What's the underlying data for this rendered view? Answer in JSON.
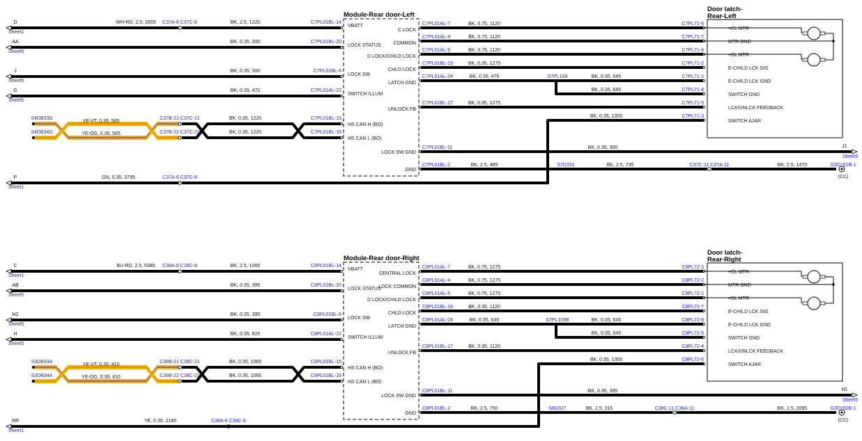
{
  "sections": [
    {
      "module_title": "Module-Rear door-Left",
      "latch_title_1": "Door latch-",
      "latch_title_2": "Rear-Left",
      "left_wires": [
        {
          "letter": "D",
          "sheet": "Sheet1",
          "spec": "WH-RD, 2.5, 2655",
          "conn": "C37A-8 C37C-8",
          "spec2": "BK, 2.5, 1220",
          "pin": "C7PL01BL-14",
          "func": "VBATT",
          "color": "#b33"
        },
        {
          "letter": "AA",
          "sheet": "Sheet5",
          "spec": "",
          "conn": "",
          "spec2": "BK, 0.35, 300",
          "pin": "C7PL01BL-20",
          "func": "LOCK STATUS",
          "color": "#000"
        },
        {
          "letter": "J",
          "sheet": "Sheet5",
          "spec": "",
          "conn": "",
          "spec2": "BK, 0.35, 300",
          "pin": "C7PL01BL-6",
          "func": "LOCK SW",
          "color": "#000"
        },
        {
          "letter": "G",
          "sheet": "Sheet5",
          "spec": "",
          "conn": "",
          "spec2": "BK, 0.35, 470",
          "pin": "C7PL01AL-22",
          "func": "SWITCH ILLUM",
          "color": "#000"
        }
      ],
      "can": [
        {
          "splice": "S4DB33G",
          "spec": "YE-VT, 0.35, 565",
          "conn": "C37B-21 C37C-21",
          "spec2": "BK, 0.35, 1220",
          "pin": "C7PL01BL-15",
          "func": "HS CAN H (BO)"
        },
        {
          "splice": "S4DB34G",
          "spec": "YE-OG, 0.35, 565",
          "conn": "C37B-22 C37C-22",
          "spec2": "BK, 0.35, 1220",
          "pin": "C7PL01BL-16",
          "func": "HS CAN L (BO)"
        }
      ],
      "bottom_wire": {
        "letter": "P",
        "sheet": "Sheet1",
        "spec": "GN, 0.35, 3735",
        "conn": "C37A-6 C37C-8",
        "color": "#2a2"
      },
      "right_wires": [
        {
          "func": "C LOCK",
          "pin": "C7PL01AL-7",
          "spec": "BK, 0.75, 1120",
          "latch_pin": "C7PL71-6",
          "latch_func": "+CL MTR"
        },
        {
          "func": "COMMON",
          "pin": "C7PL01AL-4",
          "spec": "BK, 0.75, 1120",
          "latch_pin": "C7PL71-7",
          "latch_func": "MTR GND"
        },
        {
          "func": "D LOCK/CHILD LOCK",
          "pin": "C7PL01AL-5",
          "spec": "BK, 0.75, 1120",
          "latch_pin": "C7PL71-8",
          "latch_func": "+DL MTR"
        },
        {
          "func": "CHLD LOCK",
          "pin": "C7PL01BL-19",
          "spec": "BK, 0.35, 1275",
          "latch_pin": "C7PL71-2",
          "latch_func": "E-CHILD LCK SIG"
        },
        {
          "func": "LATCH GND",
          "pin": "C7PL01AL-24",
          "spec": "BK, 0.35, 475",
          "latch_pin": "C7PL71-1",
          "latch_func": "E-CHILD LCK GND",
          "splice": "S7PL109",
          "spec_b": "BK, 0.35, 645"
        },
        {
          "func": "",
          "pin": "",
          "spec": "BK, 0.35, 645",
          "latch_pin": "C7PL71-4",
          "latch_func": "SWITCH GND"
        },
        {
          "func": "UNLOCK FB",
          "pin": "C7PL01BL-17",
          "spec": "BK, 0.35, 1275",
          "latch_pin": "C7PL71-5",
          "latch_func": "LCK/UNLCK FEEDBACK"
        },
        {
          "func": "",
          "pin": "",
          "spec": "BK, 0.35, 1355",
          "latch_pin": "C7PL71-3",
          "latch_func": "SWITCH AJAR"
        }
      ],
      "lock_sw_gnd": {
        "func": "LOCK SW GND",
        "pin": "C7PL01BL-11",
        "spec": "BK, 0.35, 300",
        "letter": "J1",
        "sheet": "Sheet5"
      },
      "gnd": {
        "func": "GND",
        "pin": "C7PL01BL-2",
        "spec": "BK, 2.5, 485",
        "splice": "S7D151",
        "spec2": "BK, 2.5, 735",
        "conn": "C37C-11 C37A-11",
        "spec3": "BK, 2.5, 1470",
        "ground": "G3D191B-1",
        "cc": "(CC)"
      }
    },
    {
      "module_title": "Module-Rear door-Right",
      "latch_title_1": "Door latch-",
      "latch_title_2": "Rear-Right",
      "left_wires": [
        {
          "letter": "C",
          "sheet": "Sheet1",
          "spec": "BU-RD, 2.5, 5385",
          "conn": "C38A-8 C38C-8",
          "spec2": "BK, 2.5, 1065",
          "pin": "C8PL01BL-14",
          "func": "VBATT",
          "color": "#6a1a8a"
        },
        {
          "letter": "AB",
          "sheet": "Sheet5",
          "spec": "",
          "conn": "",
          "spec2": "BK, 0.35, 395",
          "pin": "C8PL01BL-20",
          "func": "LOCK STATUS",
          "color": "#000"
        },
        {
          "letter": "H2",
          "sheet": "Sheet5",
          "spec": "",
          "conn": "",
          "spec2": "BK, 0.35, 395",
          "pin": "C8PL01BL-6",
          "func": "LOCK SW",
          "color": "#000"
        },
        {
          "letter": "H",
          "sheet": "Sheet5",
          "spec": "",
          "conn": "",
          "spec2": "BK, 0.35, 625",
          "pin": "C8PL01AL-22",
          "func": "SWITCH ILLUM",
          "color": "#000"
        }
      ],
      "can": [
        {
          "splice": "S3DB33A",
          "spec": "YE-VT, 0.35, 410",
          "conn": "C38B-21 C38C-21",
          "spec2": "BK, 0.35, 1065",
          "pin": "C8PL01BL-15",
          "func": "HS CAN H (BO)"
        },
        {
          "splice": "S3DB34A",
          "spec": "YE-OG, 0.35, 410",
          "conn": "C38B-22 C38C-22",
          "spec2": "BK, 0.35, 1065",
          "pin": "C8PL01BL-16",
          "func": "HS CAN L (BO)"
        }
      ],
      "bottom_wire": {
        "letter": "RR",
        "sheet": "Sheet1",
        "spec": "YE, 0.35, 2185",
        "conn": "C38A-6 C38C-6",
        "color": "#e6d800"
      },
      "right_wires": [
        {
          "func": "CENTRAL LOCK",
          "pin": "C8PL01AL-7",
          "spec": "BK, 0.75, 1275",
          "latch_pin": "C8PL72-3",
          "latch_func": "+CL MTR"
        },
        {
          "func": "LOCK COMMON",
          "pin": "C8PL01AL-4",
          "spec": "BK, 0.75, 1275",
          "latch_pin": "C8PL72-2",
          "latch_func": "MTR GND"
        },
        {
          "func": "D LOCK/CHILD LOCK",
          "pin": "C8PL01AL-5",
          "spec": "BK, 0.75, 1275",
          "latch_pin": "C8PL72-1",
          "latch_func": "+DL MTR"
        },
        {
          "func": "CHLD LOCK",
          "pin": "C8PL01BL-19",
          "spec": "BK, 0.35, 1120",
          "latch_pin": "C8PL72-7",
          "latch_func": "E-CHILD LCK SIG"
        },
        {
          "func": "LATCH GND",
          "pin": "C8PL01AL-24",
          "spec": "BK, 0.35, 630",
          "latch_pin": "C8PL72-8",
          "latch_func": "E-CHILD LCK GND",
          "splice": "S7PL109B",
          "spec_b": "BK, 0.35, 645"
        },
        {
          "func": "",
          "pin": "",
          "spec": "BK, 0.35, 645",
          "latch_pin": "C8PL72-5",
          "latch_func": "SWITCH GND"
        },
        {
          "func": "UNLOCK FB",
          "pin": "C8PL01BL-17",
          "spec": "BK, 0.35, 1120",
          "latch_pin": "C8PL72-4",
          "latch_func": "LCK/UNLCK FEEDBACK"
        },
        {
          "func": "",
          "pin": "",
          "spec": "BK, 0.35, 1355",
          "latch_pin": "C8PL72-6",
          "latch_func": "SWITCH AJAR"
        }
      ],
      "lock_sw_gnd": {
        "func": "LOCK SW GND",
        "pin": "C8PL01BL-11",
        "spec": "BK, 0.35, 395",
        "letter": "H1",
        "sheet": "Sheet5"
      },
      "gnd": {
        "func": "GND",
        "pin": "C8PL01BL-2",
        "spec": "BK, 2.5, 750",
        "splice": "S8D327",
        "spec2": "BK, 2.5, 315",
        "conn": "C38C-11 C38A-11",
        "spec3": "BK, 2.5, 2095",
        "ground": "G3D192B-1",
        "cc": "(CC)"
      }
    }
  ]
}
